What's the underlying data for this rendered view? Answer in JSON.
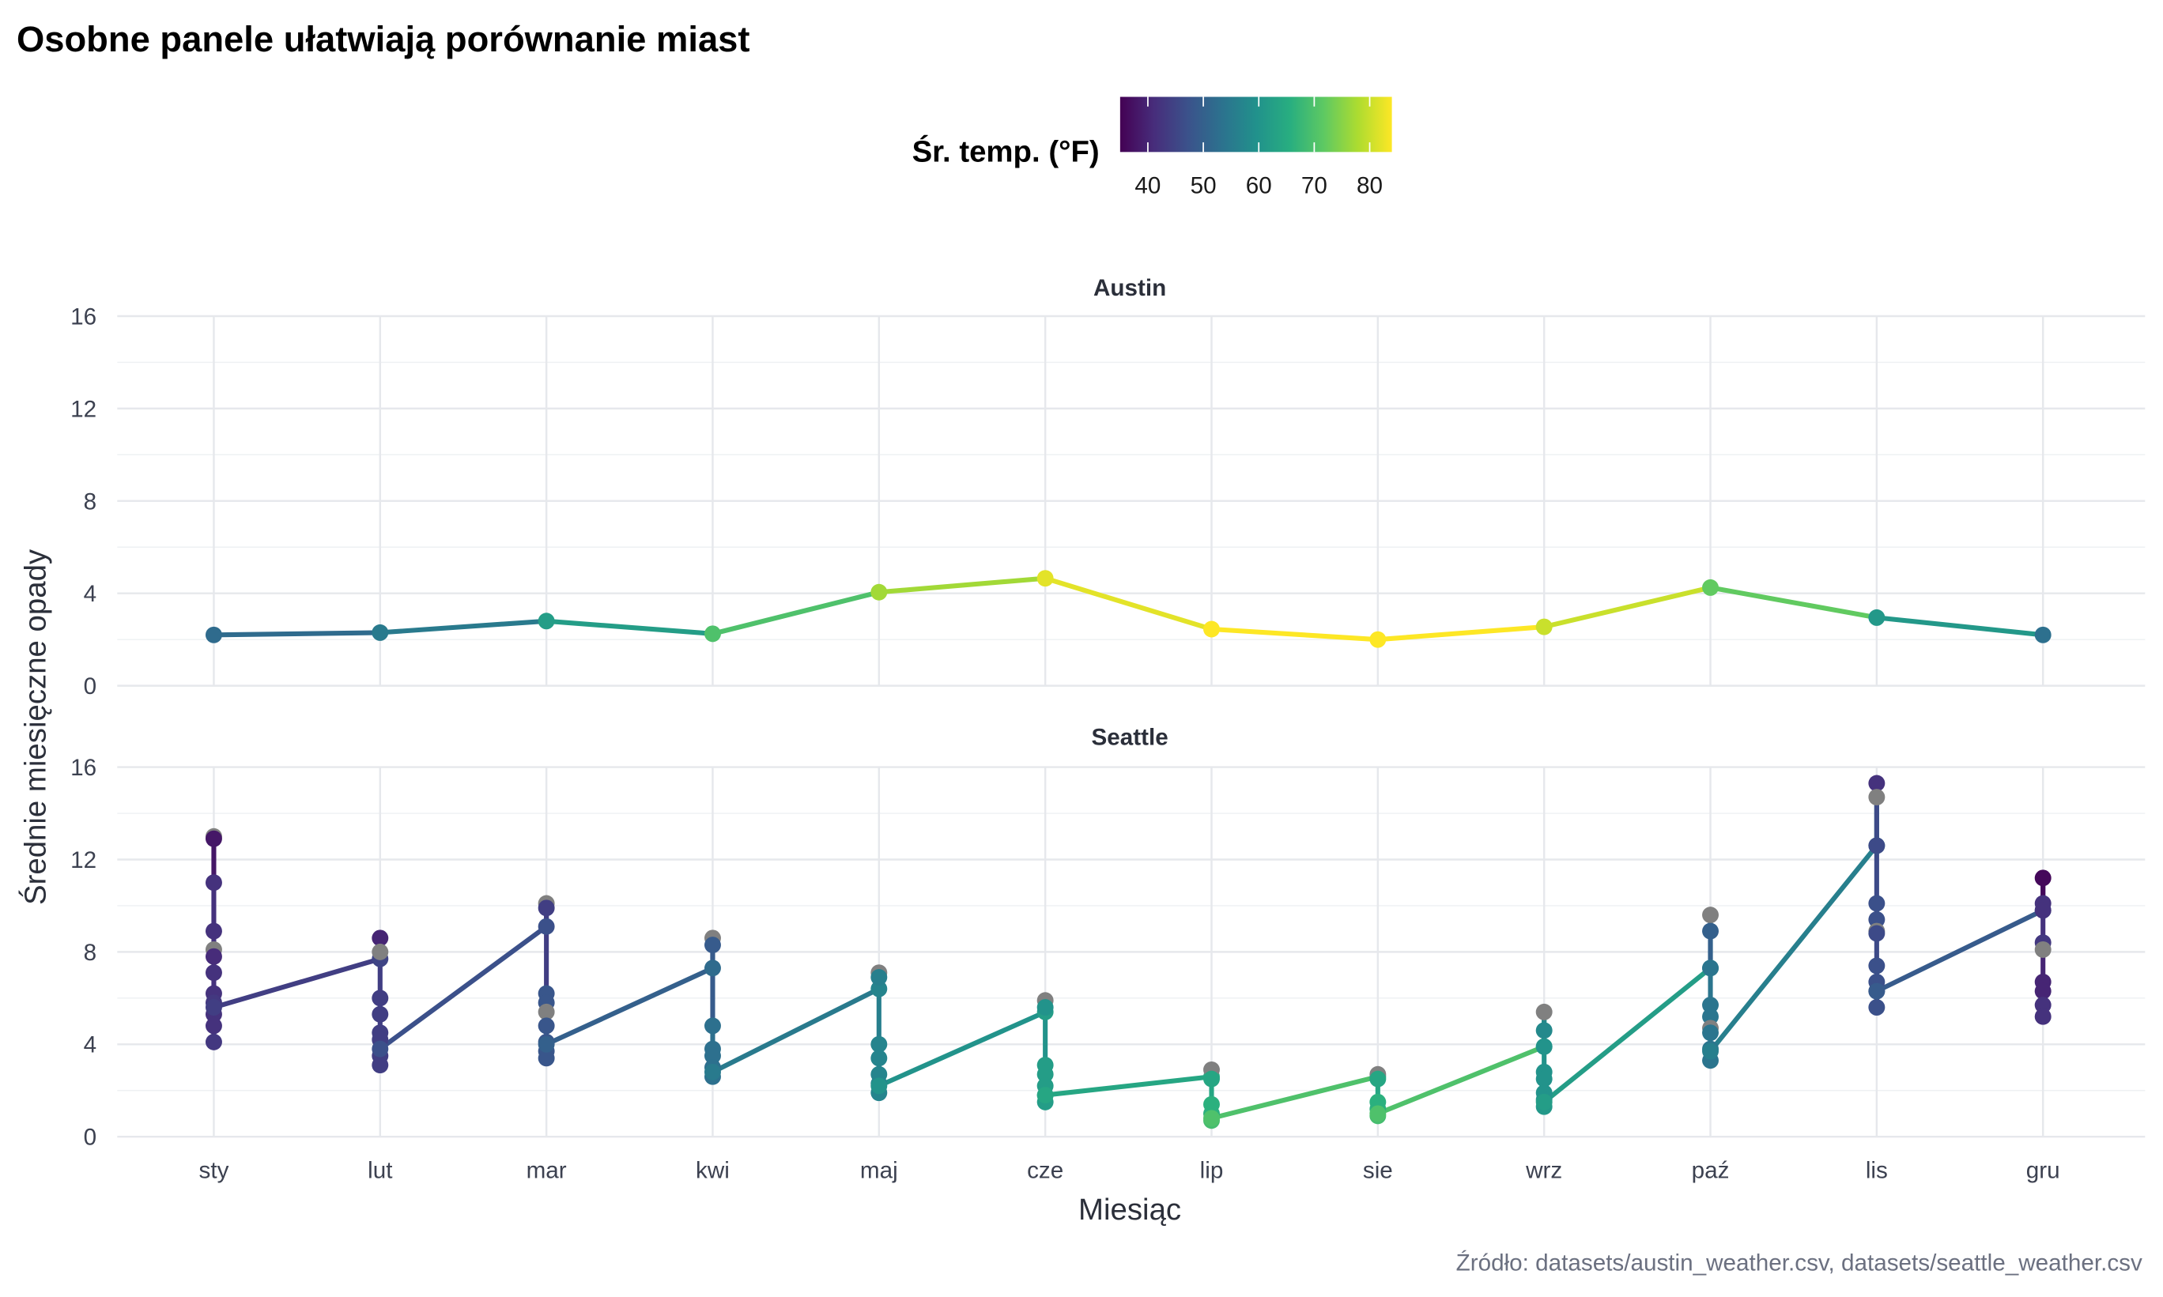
{
  "chart_data": {
    "type": "line",
    "title": "Osobne panele ułatwiają porównanie miast",
    "xlabel": "Miesiąc",
    "ylabel": "Średnie miesięczne opady",
    "caption": "Źródło: datasets/austin_weather.csv, datasets/seattle_weather.csv",
    "categories": [
      "sty",
      "lut",
      "mar",
      "kwi",
      "maj",
      "cze",
      "lip",
      "sie",
      "wrz",
      "paź",
      "lis",
      "gru"
    ],
    "ylim": [
      0,
      16
    ],
    "yticks": [
      "0",
      "4",
      "8",
      "12",
      "16"
    ],
    "grid": true,
    "legend": {
      "title": "Śr. temp. (°F)",
      "placement": "top",
      "range": [
        35,
        84
      ],
      "ticks": [
        "40",
        "50",
        "60",
        "70",
        "80"
      ],
      "colormap": "viridis",
      "na_color": "#808080"
    },
    "panels": [
      {
        "name": "Austin",
        "values": [
          2.2,
          2.3,
          2.8,
          2.25,
          4.05,
          4.65,
          2.45,
          2.0,
          2.55,
          4.25,
          2.95,
          2.2
        ],
        "temps": [
          52,
          55,
          62,
          70,
          77,
          82,
          85,
          85,
          80,
          72,
          61,
          53
        ]
      },
      {
        "name": "Seattle",
        "points_by_month": [
          [
            [
              13.0,
              null
            ],
            [
              12.9,
              38
            ],
            [
              11.0,
              42
            ],
            [
              8.9,
              42
            ],
            [
              8.1,
              null
            ],
            [
              7.8,
              41
            ],
            [
              7.1,
              42
            ],
            [
              6.2,
              42
            ],
            [
              5.8,
              43
            ],
            [
              5.3,
              42
            ],
            [
              4.8,
              42
            ],
            [
              4.1,
              43
            ],
            [
              5.6,
              44
            ]
          ],
          [
            [
              7.7,
              45
            ],
            [
              8.6,
              40
            ],
            [
              8.0,
              null
            ],
            [
              6.0,
              44
            ],
            [
              5.3,
              44
            ],
            [
              4.5,
              44
            ],
            [
              4.2,
              44
            ],
            [
              3.5,
              44
            ],
            [
              3.1,
              44
            ],
            [
              3.8,
              47
            ]
          ],
          [
            [
              9.1,
              47
            ],
            [
              10.1,
              null
            ],
            [
              9.9,
              44
            ],
            [
              6.2,
              48
            ],
            [
              5.8,
              48
            ],
            [
              5.4,
              null
            ],
            [
              4.8,
              48
            ],
            [
              4.1,
              48
            ],
            [
              3.7,
              48
            ],
            [
              3.4,
              48
            ],
            [
              4.0,
              50
            ]
          ],
          [
            [
              7.3,
              52
            ],
            [
              8.6,
              null
            ],
            [
              8.3,
              49
            ],
            [
              4.8,
              53
            ],
            [
              3.8,
              53
            ],
            [
              3.5,
              53
            ],
            [
              3.0,
              53
            ],
            [
              2.6,
              53
            ],
            [
              2.8,
              55
            ]
          ],
          [
            [
              6.4,
              57
            ],
            [
              7.1,
              null
            ],
            [
              6.9,
              56
            ],
            [
              4.0,
              57
            ],
            [
              3.4,
              57
            ],
            [
              2.7,
              57
            ],
            [
              2.3,
              57
            ],
            [
              1.9,
              57
            ],
            [
              2.2,
              60
            ]
          ],
          [
            [
              5.4,
              62
            ],
            [
              5.9,
              null
            ],
            [
              5.6,
              60
            ],
            [
              3.1,
              62
            ],
            [
              2.7,
              62
            ],
            [
              2.2,
              62
            ],
            [
              1.8,
              62
            ],
            [
              1.5,
              62
            ],
            [
              1.8,
              64
            ]
          ],
          [
            [
              2.6,
              65
            ],
            [
              2.9,
              null
            ],
            [
              2.5,
              64
            ],
            [
              1.4,
              66
            ],
            [
              1.0,
              66
            ],
            [
              0.7,
              69
            ],
            [
              0.8,
              70
            ]
          ],
          [
            [
              2.6,
              65
            ],
            [
              2.7,
              null
            ],
            [
              2.5,
              64
            ],
            [
              1.5,
              66
            ],
            [
              1.2,
              66
            ],
            [
              0.9,
              69
            ],
            [
              1.0,
              70
            ]
          ],
          [
            [
              3.9,
              65
            ],
            [
              5.4,
              null
            ],
            [
              4.6,
              58
            ],
            [
              3.9,
              60
            ],
            [
              2.8,
              60
            ],
            [
              2.5,
              60
            ],
            [
              1.9,
              60
            ],
            [
              1.6,
              60
            ],
            [
              1.3,
              61
            ],
            [
              1.5,
              62
            ]
          ],
          [
            [
              7.3,
              62
            ],
            [
              9.6,
              null
            ],
            [
              8.9,
              50
            ],
            [
              7.3,
              54
            ],
            [
              5.7,
              54
            ],
            [
              5.2,
              54
            ],
            [
              4.7,
              null
            ],
            [
              4.5,
              54
            ],
            [
              3.8,
              54
            ],
            [
              3.3,
              54
            ],
            [
              3.7,
              56
            ]
          ],
          [
            [
              12.6,
              57
            ],
            [
              15.3,
              42
            ],
            [
              14.7,
              null
            ],
            [
              12.6,
              46
            ],
            [
              10.1,
              47
            ],
            [
              9.4,
              47
            ],
            [
              8.9,
              null
            ],
            [
              8.8,
              46
            ],
            [
              7.4,
              47
            ],
            [
              6.7,
              47
            ],
            [
              6.3,
              47
            ],
            [
              5.6,
              47
            ],
            [
              6.3,
              49
            ]
          ],
          [
            [
              9.8,
              50
            ],
            [
              11.2,
              36
            ],
            [
              10.1,
              42
            ],
            [
              9.8,
              42
            ],
            [
              8.4,
              43
            ],
            [
              8.1,
              null
            ],
            [
              6.7,
              40
            ],
            [
              6.3,
              40
            ],
            [
              5.7,
              42
            ],
            [
              5.2,
              42
            ]
          ]
        ]
      }
    ]
  }
}
